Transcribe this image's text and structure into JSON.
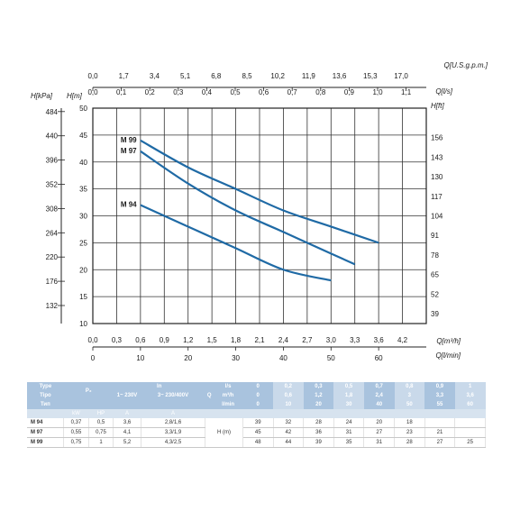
{
  "chart_data": {
    "type": "line",
    "axes": {
      "top_usgpm": {
        "label": "Q[U.S.g.p.m.]",
        "ticks": [
          "0,0",
          "1,7",
          "3,4",
          "5,1",
          "6,8",
          "8,5",
          "10,2",
          "11,9",
          "13,6",
          "15,3",
          "17,0"
        ]
      },
      "top_ls": {
        "label": "Q[l/s]",
        "ticks": [
          "0,0",
          "0,1",
          "0,2",
          "0,3",
          "0,4",
          "0,5",
          "0,6",
          "0,7",
          "0,8",
          "0,9",
          "1,0",
          "1,1"
        ]
      },
      "bottom_m3h": {
        "label": "Q[m³/h]",
        "ticks": [
          "0,0",
          "0,3",
          "0,6",
          "0,9",
          "1,2",
          "1,5",
          "1,8",
          "2,1",
          "2,4",
          "2,7",
          "3,0",
          "3,3",
          "3,6",
          "4,2"
        ]
      },
      "bottom_lmin": {
        "label": "Q[l/min]",
        "ticks": [
          "0",
          "10",
          "20",
          "30",
          "40",
          "50",
          "60"
        ]
      },
      "left_m": {
        "label": "H[m]",
        "ticks": [
          "10",
          "15",
          "20",
          "25",
          "30",
          "35",
          "40",
          "45",
          "50"
        ],
        "range": [
          10,
          50
        ]
      },
      "left_kpa": {
        "label": "H[kPa]",
        "ticks": [
          "132",
          "176",
          "220",
          "264",
          "308",
          "352",
          "396",
          "440",
          "484"
        ]
      },
      "right_ft": {
        "label": "H[ft]",
        "ticks": [
          "39",
          "52",
          "65",
          "78",
          "91",
          "104",
          "117",
          "130",
          "143",
          "156"
        ]
      }
    },
    "x_unit": "l/min",
    "x_range": [
      0,
      70
    ],
    "y_range": [
      10,
      50
    ],
    "grid": true,
    "series": [
      {
        "name": "M 99",
        "x": [
          10,
          20,
          30,
          40,
          50,
          60
        ],
        "y": [
          44,
          39,
          35,
          31,
          28,
          25
        ]
      },
      {
        "name": "M 97",
        "x": [
          10,
          20,
          30,
          40,
          50,
          55
        ],
        "y": [
          42,
          36,
          31,
          27,
          23,
          21
        ]
      },
      {
        "name": "M 94",
        "x": [
          10,
          20,
          30,
          40,
          50
        ],
        "y": [
          32,
          28,
          24,
          20,
          18
        ]
      }
    ]
  },
  "table": {
    "header": {
      "type": "Type",
      "tipo": "Tipo",
      "typ": "Тип",
      "p2": "P₂",
      "in": "In",
      "phase1": "1~ 230V",
      "phase3": "3~ 230/400V",
      "q": "Q",
      "h": "H (m)",
      "unit_ls": "l/s",
      "unit_m3h": "m³/h",
      "unit_lmin": "l/min",
      "kw": "kW",
      "hp": "HP",
      "amp1": "A",
      "amp3": "A"
    },
    "q_ls": [
      "0",
      "0,2",
      "0,3",
      "0,5",
      "0,7",
      "0,8",
      "0,9",
      "1"
    ],
    "q_m3h": [
      "0",
      "0,6",
      "1,2",
      "1,8",
      "2,4",
      "3",
      "3,3",
      "3,6"
    ],
    "q_lmin": [
      "0",
      "10",
      "20",
      "30",
      "40",
      "50",
      "55",
      "60"
    ],
    "rows": [
      {
        "model": "M 94",
        "kw": "0,37",
        "hp": "0,5",
        "a1": "3,6",
        "a3": "2,8/1,6",
        "h": [
          "39",
          "32",
          "28",
          "24",
          "20",
          "18",
          "",
          ""
        ]
      },
      {
        "model": "M 97",
        "kw": "0,55",
        "hp": "0,75",
        "a1": "4,1",
        "a3": "3,3/1,9",
        "h": [
          "45",
          "42",
          "36",
          "31",
          "27",
          "23",
          "21",
          ""
        ]
      },
      {
        "model": "M 99",
        "kw": "0,75",
        "hp": "1",
        "a1": "5,2",
        "a3": "4,3/2,5",
        "h": [
          "48",
          "44",
          "39",
          "35",
          "31",
          "28",
          "27",
          "25"
        ]
      }
    ],
    "colors": {
      "header": "#a9c3de",
      "curve": "#1f6aa5"
    }
  }
}
